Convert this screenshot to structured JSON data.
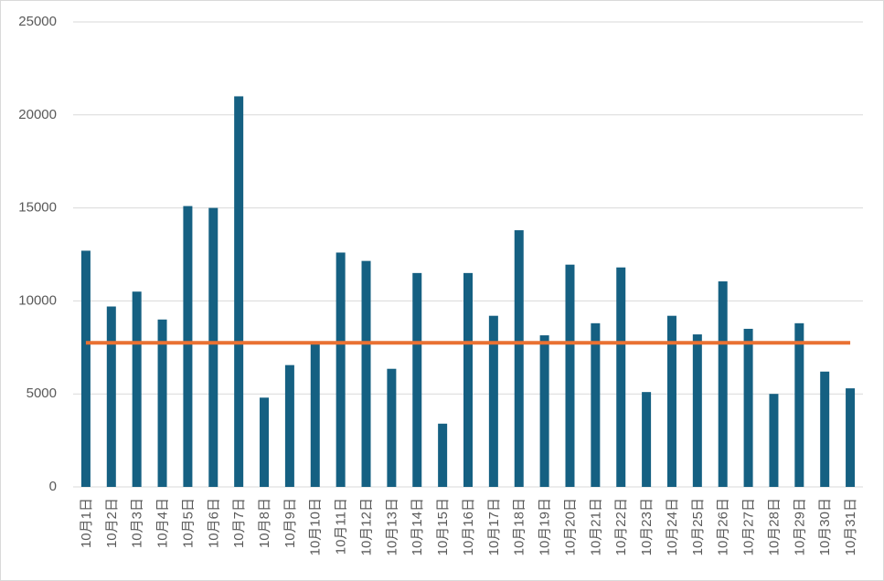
{
  "chart_data": {
    "type": "bar",
    "categories": [
      "10月1日",
      "10月2日",
      "10月3日",
      "10月4日",
      "10月5日",
      "10月6日",
      "10月7日",
      "10月8日",
      "10月9日",
      "10月10日",
      "10月11日",
      "10月12日",
      "10月13日",
      "10月14日",
      "10月15日",
      "10月16日",
      "10月17日",
      "10月18日",
      "10月19日",
      "10月20日",
      "10月21日",
      "10月22日",
      "10月23日",
      "10月24日",
      "10月25日",
      "10月26日",
      "10月27日",
      "10月28日",
      "10月29日",
      "10月30日",
      "10月31日"
    ],
    "series": [
      {
        "type": "bar",
        "color": "#156082",
        "values": [
          12700,
          9700,
          10500,
          9000,
          15100,
          15000,
          21000,
          4800,
          6550,
          7700,
          12600,
          12150,
          6350,
          11500,
          3400,
          11500,
          9200,
          13800,
          8150,
          11950,
          8800,
          11800,
          5100,
          9200,
          8200,
          11050,
          8500,
          5000,
          8800,
          6200,
          5300
        ]
      },
      {
        "type": "line",
        "color": "#e97132",
        "values": [
          7750,
          7750,
          7750,
          7750,
          7750,
          7750,
          7750,
          7750,
          7750,
          7750,
          7750,
          7750,
          7750,
          7750,
          7750,
          7750,
          7750,
          7750,
          7750,
          7750,
          7750,
          7750,
          7750,
          7750,
          7750,
          7750,
          7750,
          7750,
          7750,
          7750,
          7750
        ]
      }
    ],
    "ylim": [
      0,
      25000
    ],
    "yticks": [
      0,
      5000,
      10000,
      15000,
      20000,
      25000
    ],
    "grid": true
  }
}
